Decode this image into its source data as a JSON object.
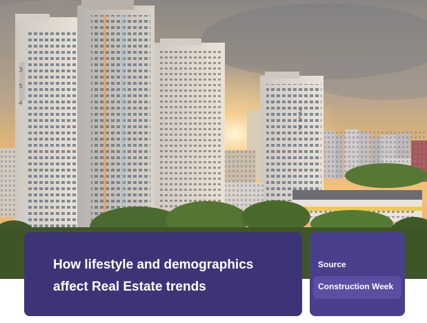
{
  "card": {
    "title": "How lifestyle and demographics affect Real Estate trends"
  },
  "source": {
    "label": "Source",
    "name": "Construction Week"
  },
  "image": {
    "subject": "city-skyline-photo"
  },
  "colors": {
    "title_card_bg": "#3d3478",
    "source_card_bg": "#4a3f8c",
    "source_pill_bg": "#5b4fa3"
  }
}
